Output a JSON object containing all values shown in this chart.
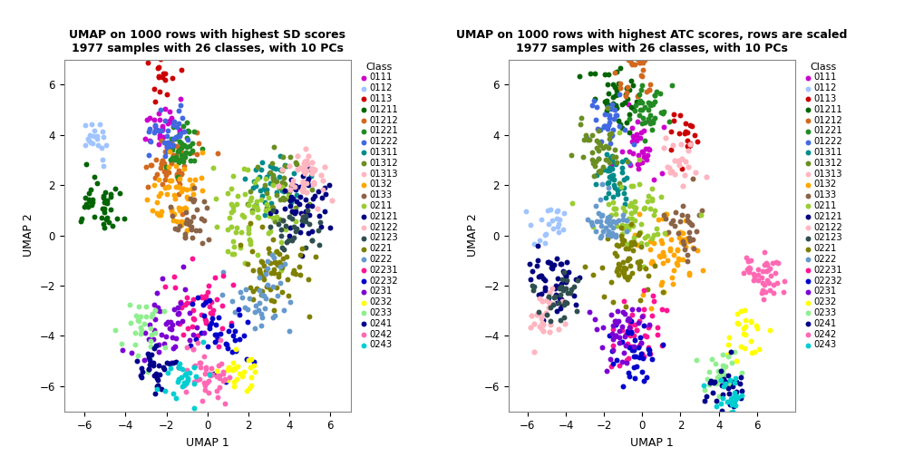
{
  "title1": "UMAP on 1000 rows with highest SD scores\n1977 samples with 26 classes, with 10 PCs",
  "title2": "UMAP on 1000 rows with highest ATC scores, rows are scaled\n1977 samples with 26 classes, with 10 PCs",
  "xlabel": "UMAP 1",
  "ylabel": "UMAP 2",
  "xlim1": [
    -7,
    7
  ],
  "ylim1": [
    -7,
    7
  ],
  "xlim2": [
    -7,
    8
  ],
  "ylim2": [
    -7,
    7
  ],
  "xticks1": [
    -6,
    -4,
    -2,
    0,
    2,
    4,
    6
  ],
  "yticks": [
    -6,
    -4,
    -2,
    0,
    2,
    4,
    6
  ],
  "xticks2": [
    -6,
    -4,
    -2,
    0,
    2,
    4,
    6
  ],
  "classes": [
    "0111",
    "0112",
    "0113",
    "01211",
    "01212",
    "01221",
    "01222",
    "01311",
    "01312",
    "01313",
    "0132",
    "0133",
    "0211",
    "02121",
    "02122",
    "02123",
    "0221",
    "0222",
    "02231",
    "02232",
    "0231",
    "0232",
    "0233",
    "0241",
    "0242",
    "0243"
  ],
  "colors": [
    "#CC00CC",
    "#A0C4FF",
    "#CC0000",
    "#006400",
    "#D2691E",
    "#228B22",
    "#4169E1",
    "#008B8B",
    "#6B8E23",
    "#FFB6C1",
    "#FFA500",
    "#8B6347",
    "#9ACD32",
    "#000080",
    "#FFB6C1",
    "#2F4F4F",
    "#808000",
    "#6699CC",
    "#FF1493",
    "#0000CC",
    "#7B00D4",
    "#FFFF00",
    "#90EE90",
    "#00008B",
    "#FF69B4",
    "#00CED1"
  ],
  "point_size": 18,
  "alpha": 1.0,
  "background_color": "#FFFFFF",
  "legend_title": "Class",
  "sd_centers": [
    [
      -2.1,
      4.5
    ],
    [
      -5.5,
      3.8
    ],
    [
      -2.2,
      6.3
    ],
    [
      -5.2,
      1.2
    ],
    [
      -1.8,
      2.8
    ],
    [
      -1.3,
      3.4
    ],
    [
      -2.0,
      4.2
    ],
    [
      3.2,
      2.3
    ],
    [
      3.5,
      1.8
    ],
    [
      4.8,
      2.1
    ],
    [
      -1.5,
      1.5
    ],
    [
      -0.8,
      0.5
    ],
    [
      1.8,
      0.8
    ],
    [
      4.5,
      1.2
    ],
    [
      4.8,
      2.5
    ],
    [
      4.3,
      0.3
    ],
    [
      3.2,
      -1.5
    ],
    [
      2.8,
      -2.5
    ],
    [
      -0.5,
      -3.0
    ],
    [
      0.5,
      -3.8
    ],
    [
      -1.8,
      -3.8
    ],
    [
      1.5,
      -5.5
    ],
    [
      -3.2,
      -3.8
    ],
    [
      -2.5,
      -5.2
    ],
    [
      0.0,
      -5.5
    ],
    [
      -1.2,
      -5.8
    ]
  ],
  "sd_spreads": [
    0.5,
    0.4,
    0.5,
    0.6,
    0.6,
    0.5,
    0.5,
    0.6,
    0.7,
    0.5,
    0.7,
    0.6,
    1.0,
    0.7,
    0.4,
    0.5,
    0.8,
    0.8,
    0.8,
    0.7,
    0.8,
    0.5,
    0.6,
    0.5,
    0.6,
    0.5
  ],
  "sd_npts": [
    25,
    20,
    18,
    40,
    50,
    45,
    35,
    40,
    45,
    20,
    55,
    30,
    70,
    50,
    25,
    30,
    60,
    40,
    45,
    40,
    45,
    25,
    30,
    35,
    45,
    28
  ],
  "atc_centers": [
    [
      -0.2,
      3.5
    ],
    [
      -4.8,
      0.2
    ],
    [
      2.0,
      4.2
    ],
    [
      -1.2,
      5.5
    ],
    [
      -0.5,
      6.5
    ],
    [
      0.3,
      5.0
    ],
    [
      -1.8,
      4.5
    ],
    [
      -1.5,
      2.2
    ],
    [
      -2.2,
      3.3
    ],
    [
      1.8,
      2.8
    ],
    [
      1.5,
      -0.8
    ],
    [
      2.0,
      0.3
    ],
    [
      -0.3,
      0.8
    ],
    [
      -4.8,
      -1.8
    ],
    [
      -5.0,
      -3.2
    ],
    [
      -4.5,
      -2.5
    ],
    [
      -0.8,
      -1.2
    ],
    [
      -1.8,
      0.5
    ],
    [
      -0.3,
      -3.8
    ],
    [
      -0.5,
      -4.5
    ],
    [
      -1.2,
      -4.0
    ],
    [
      5.2,
      -3.8
    ],
    [
      4.2,
      -5.5
    ],
    [
      4.5,
      -6.0
    ],
    [
      6.5,
      -1.5
    ],
    [
      4.5,
      -6.5
    ]
  ],
  "atc_spreads": [
    0.6,
    0.5,
    0.5,
    0.7,
    0.5,
    0.5,
    0.6,
    0.5,
    0.6,
    0.5,
    0.8,
    0.6,
    0.9,
    0.6,
    0.5,
    0.5,
    0.7,
    0.5,
    0.7,
    0.6,
    0.7,
    0.6,
    0.5,
    0.5,
    0.5,
    0.4
  ],
  "atc_npts": [
    35,
    22,
    20,
    45,
    30,
    40,
    35,
    38,
    42,
    22,
    55,
    30,
    65,
    50,
    28,
    32,
    60,
    38,
    42,
    38,
    42,
    25,
    28,
    32,
    42,
    25
  ]
}
